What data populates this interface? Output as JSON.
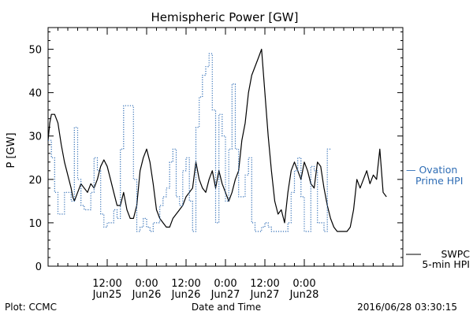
{
  "chart_data": {
    "type": "line",
    "title": "Hemispheric Power [GW]",
    "xlabel": "Date and Time",
    "ylabel": "P [GW]",
    "x_unit": "hours",
    "xlim": [
      0,
      108
    ],
    "ylim": [
      0,
      55
    ],
    "y_ticks": [
      0,
      10,
      20,
      30,
      40,
      50
    ],
    "x_major_ticks": [
      {
        "x": 18,
        "time": "12:00",
        "date": "Jun25"
      },
      {
        "x": 30,
        "time": "0:00",
        "date": "Jun26"
      },
      {
        "x": 42,
        "time": "12:00",
        "date": "Jun26"
      },
      {
        "x": 54,
        "time": "0:00",
        "date": "Jun27"
      },
      {
        "x": 66,
        "time": "12:00",
        "date": "Jun27"
      },
      {
        "x": 78,
        "time": "0:00",
        "date": "Jun28"
      }
    ],
    "x_minor_step": 3,
    "series": [
      {
        "name": "SWPC 5-min HPI",
        "label_lines": [
          "SWPC",
          "5-min HPI"
        ],
        "color": "#000000",
        "style": "solid",
        "points": [
          [
            0,
            29
          ],
          [
            0.5,
            33
          ],
          [
            1,
            35
          ],
          [
            2,
            35
          ],
          [
            3,
            33
          ],
          [
            4,
            28
          ],
          [
            5,
            24
          ],
          [
            6,
            21
          ],
          [
            7,
            18
          ],
          [
            7.5,
            16
          ],
          [
            8,
            15
          ],
          [
            9,
            17
          ],
          [
            10,
            19
          ],
          [
            11,
            18
          ],
          [
            12,
            17
          ],
          [
            13,
            19
          ],
          [
            14,
            18
          ],
          [
            15,
            20
          ],
          [
            16,
            23
          ],
          [
            17,
            24.5
          ],
          [
            18,
            23
          ],
          [
            19,
            20
          ],
          [
            20,
            17
          ],
          [
            21,
            14
          ],
          [
            22,
            14
          ],
          [
            23,
            17
          ],
          [
            24,
            13
          ],
          [
            25,
            11
          ],
          [
            26,
            11
          ],
          [
            27,
            14
          ],
          [
            28,
            22
          ],
          [
            29,
            25
          ],
          [
            30,
            27
          ],
          [
            31,
            24
          ],
          [
            32,
            19
          ],
          [
            33,
            13
          ],
          [
            34,
            11
          ],
          [
            35,
            10
          ],
          [
            36,
            9
          ],
          [
            37,
            9
          ],
          [
            38,
            11
          ],
          [
            39,
            12
          ],
          [
            40,
            13
          ],
          [
            41,
            14
          ],
          [
            42,
            16
          ],
          [
            43,
            17
          ],
          [
            44,
            18
          ],
          [
            45,
            24
          ],
          [
            46,
            20
          ],
          [
            47,
            18
          ],
          [
            48,
            17
          ],
          [
            49,
            20
          ],
          [
            50,
            22
          ],
          [
            51,
            18
          ],
          [
            52,
            22
          ],
          [
            53,
            19
          ],
          [
            54,
            17
          ],
          [
            55,
            15
          ],
          [
            56,
            17
          ],
          [
            57,
            20
          ],
          [
            58,
            22
          ],
          [
            59,
            29
          ],
          [
            60,
            33
          ],
          [
            61,
            40
          ],
          [
            62,
            44
          ],
          [
            63,
            46
          ],
          [
            64,
            48
          ],
          [
            65,
            50
          ],
          [
            66,
            40
          ],
          [
            67,
            30
          ],
          [
            68,
            22
          ],
          [
            69,
            15
          ],
          [
            70,
            12
          ],
          [
            71,
            13
          ],
          [
            72,
            10
          ],
          [
            73,
            17
          ],
          [
            74,
            22
          ],
          [
            75,
            24
          ],
          [
            76,
            22
          ],
          [
            77,
            20
          ],
          [
            78,
            24
          ],
          [
            79,
            22
          ],
          [
            80,
            19
          ],
          [
            81,
            18
          ],
          [
            82,
            24
          ],
          [
            83,
            23
          ],
          [
            84,
            18
          ],
          [
            85,
            14
          ],
          [
            86,
            11
          ],
          [
            87,
            9
          ],
          [
            88,
            8
          ],
          [
            89,
            8
          ],
          [
            90,
            8
          ],
          [
            91,
            8
          ],
          [
            92,
            9
          ],
          [
            93,
            13
          ],
          [
            94,
            20
          ],
          [
            95,
            18
          ],
          [
            96,
            20
          ],
          [
            97,
            22
          ],
          [
            98,
            19
          ],
          [
            99,
            21
          ],
          [
            100,
            20
          ],
          [
            101,
            27
          ],
          [
            102,
            17
          ],
          [
            103,
            16
          ]
        ]
      },
      {
        "name": "Ovation Prime HPI",
        "label_lines": [
          "— Ovation",
          "Prime HPI"
        ],
        "color": "#2f6db5",
        "style": "dotted",
        "points": [
          [
            0,
            29
          ],
          [
            1,
            29
          ],
          [
            1,
            25
          ],
          [
            2,
            25
          ],
          [
            2,
            17
          ],
          [
            3,
            17
          ],
          [
            3,
            12
          ],
          [
            5,
            12
          ],
          [
            5,
            17
          ],
          [
            7,
            17
          ],
          [
            7,
            15
          ],
          [
            8,
            15
          ],
          [
            8,
            32
          ],
          [
            9,
            32
          ],
          [
            9,
            20
          ],
          [
            10,
            20
          ],
          [
            10,
            14
          ],
          [
            11,
            14
          ],
          [
            11,
            13
          ],
          [
            13,
            13
          ],
          [
            13,
            17
          ],
          [
            14,
            17
          ],
          [
            14,
            25
          ],
          [
            15,
            25
          ],
          [
            15,
            22
          ],
          [
            16,
            22
          ],
          [
            16,
            12
          ],
          [
            17,
            12
          ],
          [
            17,
            9
          ],
          [
            18,
            9
          ],
          [
            18,
            10
          ],
          [
            20,
            10
          ],
          [
            20,
            13
          ],
          [
            21,
            13
          ],
          [
            21,
            11
          ],
          [
            22,
            11
          ],
          [
            22,
            27
          ],
          [
            23,
            27
          ],
          [
            23,
            37
          ],
          [
            26,
            37
          ],
          [
            26,
            20
          ],
          [
            27,
            20
          ],
          [
            27,
            8
          ],
          [
            28,
            8
          ],
          [
            28,
            9
          ],
          [
            29,
            9
          ],
          [
            29,
            11
          ],
          [
            30,
            11
          ],
          [
            30,
            9
          ],
          [
            31,
            9
          ],
          [
            31,
            8
          ],
          [
            32,
            8
          ],
          [
            32,
            10
          ],
          [
            34,
            10
          ],
          [
            34,
            14
          ],
          [
            35,
            14
          ],
          [
            35,
            16
          ],
          [
            36,
            16
          ],
          [
            36,
            18
          ],
          [
            37,
            18
          ],
          [
            37,
            24
          ],
          [
            38,
            24
          ],
          [
            38,
            27
          ],
          [
            39,
            27
          ],
          [
            39,
            16
          ],
          [
            40,
            16
          ],
          [
            40,
            14
          ],
          [
            41,
            14
          ],
          [
            41,
            22
          ],
          [
            42,
            22
          ],
          [
            42,
            25
          ],
          [
            43,
            25
          ],
          [
            43,
            15
          ],
          [
            44,
            15
          ],
          [
            44,
            8
          ],
          [
            45,
            8
          ],
          [
            45,
            32
          ],
          [
            46,
            32
          ],
          [
            46,
            39
          ],
          [
            47,
            39
          ],
          [
            47,
            44
          ],
          [
            48,
            44
          ],
          [
            48,
            46
          ],
          [
            49,
            46
          ],
          [
            49,
            49
          ],
          [
            50,
            49
          ],
          [
            50,
            36
          ],
          [
            51,
            36
          ],
          [
            51,
            10
          ],
          [
            52,
            10
          ],
          [
            52,
            35
          ],
          [
            53,
            35
          ],
          [
            53,
            30
          ],
          [
            54,
            30
          ],
          [
            54,
            15
          ],
          [
            55,
            15
          ],
          [
            55,
            27
          ],
          [
            56,
            27
          ],
          [
            56,
            42
          ],
          [
            57,
            42
          ],
          [
            57,
            27
          ],
          [
            58,
            27
          ],
          [
            58,
            16
          ],
          [
            59,
            16
          ],
          [
            59,
            16
          ],
          [
            60,
            16
          ],
          [
            60,
            21
          ],
          [
            61,
            21
          ],
          [
            61,
            25
          ],
          [
            62,
            25
          ],
          [
            62,
            10
          ],
          [
            63,
            10
          ],
          [
            63,
            8
          ],
          [
            65,
            8
          ],
          [
            65,
            9
          ],
          [
            66,
            9
          ],
          [
            66,
            10
          ],
          [
            67,
            10
          ],
          [
            67,
            9
          ],
          [
            68,
            9
          ],
          [
            68,
            8
          ],
          [
            73,
            8
          ],
          [
            73,
            10
          ],
          [
            74,
            10
          ],
          [
            74,
            17
          ],
          [
            75,
            17
          ],
          [
            75,
            22
          ],
          [
            76,
            22
          ],
          [
            76,
            25
          ],
          [
            77,
            25
          ],
          [
            77,
            16
          ],
          [
            78,
            16
          ],
          [
            78,
            8
          ],
          [
            80,
            8
          ],
          [
            80,
            23
          ],
          [
            81,
            23
          ],
          [
            81,
            22
          ],
          [
            82,
            22
          ],
          [
            82,
            10
          ],
          [
            84,
            10
          ],
          [
            84,
            8
          ],
          [
            85,
            8
          ],
          [
            85,
            27
          ],
          [
            86,
            27
          ]
        ]
      }
    ]
  },
  "footer": {
    "left": "Plot: CCMC",
    "center": "Date and Time",
    "right": "2016/06/28 03:30:15"
  }
}
